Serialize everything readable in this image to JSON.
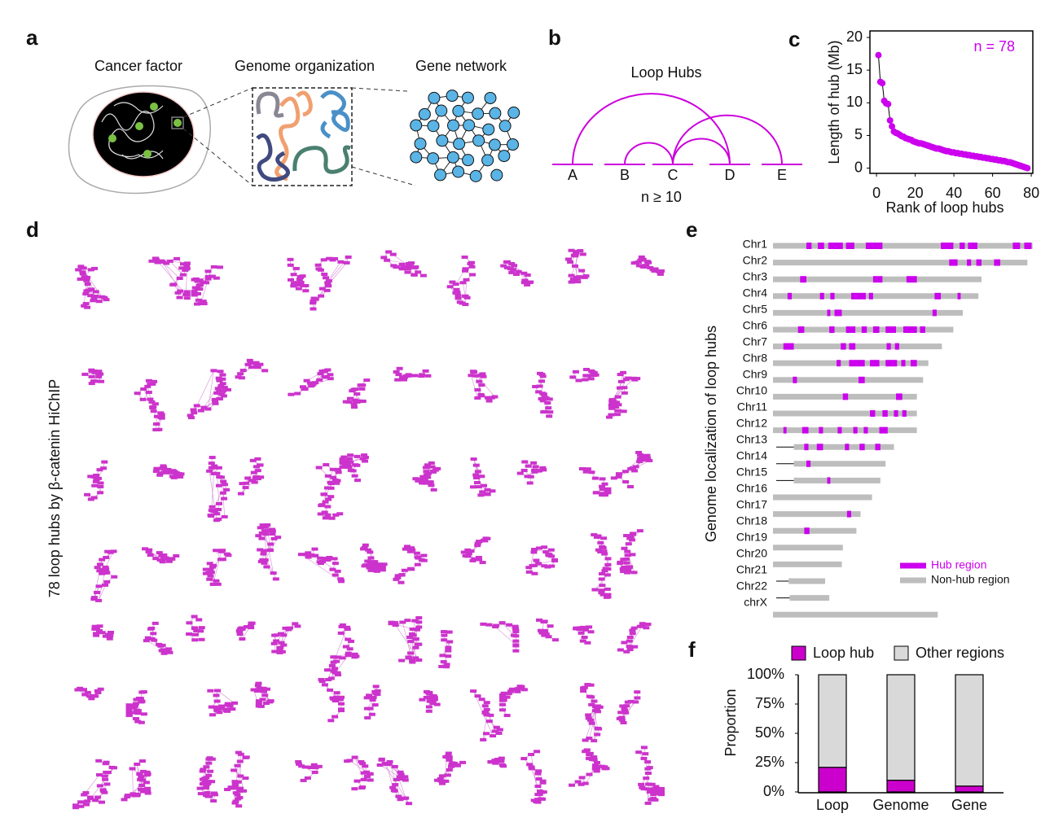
{
  "panel_labels": [
    "a",
    "b",
    "c",
    "d",
    "e",
    "f"
  ],
  "panel_a": {
    "labels": [
      "Cancer factor",
      "Genome organization",
      "Gene network"
    ]
  },
  "panel_b": {
    "title": "Loop Hubs",
    "anchors": [
      "A",
      "B",
      "C",
      "D",
      "E"
    ],
    "note": "n ≥ 10"
  },
  "panel_d": {
    "ylabel": "78 loop hubs by β-catenin HiChIP"
  },
  "panel_e": {
    "ylabel": "Genome localization of loop hubs",
    "legend": [
      "Hub region",
      "Non-hub region"
    ],
    "hub_color": "#cc00ee",
    "nonhub_color": "#bdbdbd",
    "chromosomes": [
      {
        "label": "Chr1",
        "start": 0,
        "end": 249,
        "hubs": [
          [
            32,
            37
          ],
          [
            43,
            49
          ],
          [
            53,
            67
          ],
          [
            70,
            78
          ],
          [
            89,
            105
          ],
          [
            161,
            173
          ],
          [
            179,
            184
          ],
          [
            187,
            196
          ],
          [
            230,
            237
          ],
          [
            241,
            248
          ]
        ]
      },
      {
        "label": "Chr2",
        "start": 0,
        "end": 244,
        "hubs": [
          [
            169,
            177
          ],
          [
            186,
            190
          ],
          [
            195,
            200
          ],
          [
            212,
            218
          ]
        ]
      },
      {
        "label": "Chr3",
        "start": 0,
        "end": 200,
        "hubs": [
          [
            26,
            32
          ],
          [
            96,
            105
          ],
          [
            128,
            138
          ]
        ]
      },
      {
        "label": "Chr4",
        "start": 0,
        "end": 197,
        "hubs": [
          [
            14,
            18
          ],
          [
            45,
            49
          ],
          [
            55,
            59
          ],
          [
            75,
            89
          ],
          [
            92,
            96
          ],
          [
            155,
            161
          ],
          [
            177,
            180
          ]
        ]
      },
      {
        "label": "Chr5",
        "start": 0,
        "end": 182,
        "hubs": [
          [
            52,
            55
          ],
          [
            59,
            66
          ],
          [
            153,
            157
          ]
        ]
      },
      {
        "label": "Chr6",
        "start": 0,
        "end": 173,
        "hubs": [
          [
            24,
            30
          ],
          [
            54,
            59
          ],
          [
            70,
            79
          ],
          [
            85,
            90
          ],
          [
            96,
            102
          ],
          [
            108,
            118
          ],
          [
            125,
            138
          ],
          [
            141,
            146
          ]
        ]
      },
      {
        "label": "Chr7",
        "start": 0,
        "end": 162,
        "hubs": [
          [
            10,
            20
          ],
          [
            65,
            70
          ],
          [
            73,
            79
          ],
          [
            109,
            113
          ],
          [
            117,
            121
          ]
        ]
      },
      {
        "label": "Chr8",
        "start": 0,
        "end": 149,
        "hubs": [
          [
            61,
            65
          ],
          [
            73,
            88
          ],
          [
            93,
            102
          ],
          [
            108,
            119
          ],
          [
            123,
            127
          ],
          [
            132,
            138
          ]
        ]
      },
      {
        "label": "Chr9",
        "start": 0,
        "end": 144,
        "hubs": [
          [
            19,
            23
          ],
          [
            82,
            88
          ]
        ]
      },
      {
        "label": "Chr10",
        "start": 0,
        "end": 138,
        "hubs": [
          [
            67,
            72
          ],
          [
            118,
            124
          ]
        ]
      },
      {
        "label": "Chr11",
        "start": 0,
        "end": 138,
        "hubs": [
          [
            93,
            98
          ],
          [
            105,
            110
          ],
          [
            116,
            120
          ],
          [
            124,
            128
          ]
        ]
      },
      {
        "label": "Chr12",
        "start": 0,
        "end": 138,
        "hubs": [
          [
            10,
            13
          ],
          [
            28,
            34
          ],
          [
            44,
            48
          ],
          [
            62,
            66
          ],
          [
            77,
            81
          ],
          [
            87,
            91
          ],
          [
            102,
            110
          ]
        ]
      },
      {
        "label": "Chr13",
        "start": 20,
        "end": 116,
        "hubs": [
          [
            30,
            34
          ],
          [
            42,
            48
          ],
          [
            69,
            73
          ],
          [
            83,
            88
          ],
          [
            98,
            103
          ]
        ]
      },
      {
        "label": "Chr14",
        "start": 20,
        "end": 108,
        "hubs": [
          [
            32,
            36
          ]
        ]
      },
      {
        "label": "Chr15",
        "start": 20,
        "end": 103,
        "hubs": [
          [
            52,
            55
          ]
        ]
      },
      {
        "label": "Chr16",
        "start": 0,
        "end": 95,
        "hubs": []
      },
      {
        "label": "Chr17",
        "start": 0,
        "end": 84,
        "hubs": [
          [
            71,
            75
          ]
        ]
      },
      {
        "label": "Chr18",
        "start": 0,
        "end": 80,
        "hubs": [
          [
            30,
            35
          ]
        ]
      },
      {
        "label": "Chr19",
        "start": 0,
        "end": 67,
        "hubs": []
      },
      {
        "label": "Chr20",
        "start": 0,
        "end": 66,
        "hubs": []
      },
      {
        "label": "Chr21",
        "start": 15,
        "end": 50,
        "hubs": []
      },
      {
        "label": "Chr22",
        "start": 16,
        "end": 54,
        "hubs": []
      },
      {
        "label": "chrX",
        "start": 0,
        "end": 158,
        "hubs": []
      }
    ]
  },
  "chart_data": [
    {
      "type": "scatter",
      "annotation": "n = 78",
      "xlabel": "Rank of loop hubs",
      "ylabel": "Length of hub (Mb)",
      "color": "#cc00ee",
      "x": [
        1,
        2,
        3,
        4,
        5,
        6,
        7,
        8,
        9,
        10,
        11,
        12,
        13,
        14,
        15,
        16,
        17,
        18,
        19,
        20,
        21,
        22,
        23,
        24,
        25,
        26,
        27,
        28,
        29,
        30,
        31,
        32,
        33,
        34,
        35,
        36,
        37,
        38,
        39,
        40,
        41,
        42,
        43,
        44,
        45,
        46,
        47,
        48,
        49,
        50,
        51,
        52,
        53,
        54,
        55,
        56,
        57,
        58,
        59,
        60,
        61,
        62,
        63,
        64,
        65,
        66,
        67,
        68,
        69,
        70,
        71,
        72,
        73,
        74,
        75,
        76,
        77,
        78
      ],
      "values": [
        17.3,
        13.2,
        13.0,
        10.3,
        9.9,
        9.8,
        7.3,
        6.4,
        5.6,
        5.4,
        5.3,
        5.1,
        4.9,
        4.8,
        4.6,
        4.5,
        4.4,
        4.3,
        4.1,
        4.0,
        3.9,
        3.8,
        3.8,
        3.7,
        3.6,
        3.5,
        3.4,
        3.3,
        3.2,
        3.1,
        3.0,
        3.0,
        2.9,
        2.8,
        2.7,
        2.6,
        2.6,
        2.5,
        2.4,
        2.4,
        2.3,
        2.3,
        2.2,
        2.2,
        2.1,
        2.1,
        2.0,
        2.0,
        1.9,
        1.9,
        1.8,
        1.8,
        1.7,
        1.7,
        1.6,
        1.6,
        1.5,
        1.5,
        1.4,
        1.4,
        1.3,
        1.3,
        1.2,
        1.2,
        1.1,
        1.1,
        1.0,
        0.9,
        0.9,
        0.8,
        0.7,
        0.6,
        0.5,
        0.4,
        0.3,
        0.2,
        0.1,
        0.0
      ],
      "xlim": [
        -3.4,
        80.8
      ],
      "ylim": [
        -0.8,
        21
      ],
      "xticks": [
        0,
        20,
        40,
        60,
        80
      ],
      "yticks": [
        0,
        5,
        10,
        15,
        20
      ]
    },
    {
      "type": "stacked_bar",
      "ylabel": "Proportion",
      "categories": [
        "Loop",
        "Genome",
        "Gene"
      ],
      "series": [
        {
          "name": "Loop hub",
          "color": "#cc00cc",
          "values": [
            21,
            10,
            5
          ]
        },
        {
          "name": "Other regions",
          "color": "#d9d9d9",
          "values": [
            79,
            90,
            95
          ]
        }
      ],
      "ylim": [
        0,
        100
      ],
      "yticks": [
        {
          "value": 0,
          "label": "0%"
        },
        {
          "value": 25,
          "label": "25%"
        },
        {
          "value": 50,
          "label": "50%"
        },
        {
          "value": 75,
          "label": "75%"
        },
        {
          "value": 100,
          "label": "100%"
        }
      ]
    }
  ]
}
